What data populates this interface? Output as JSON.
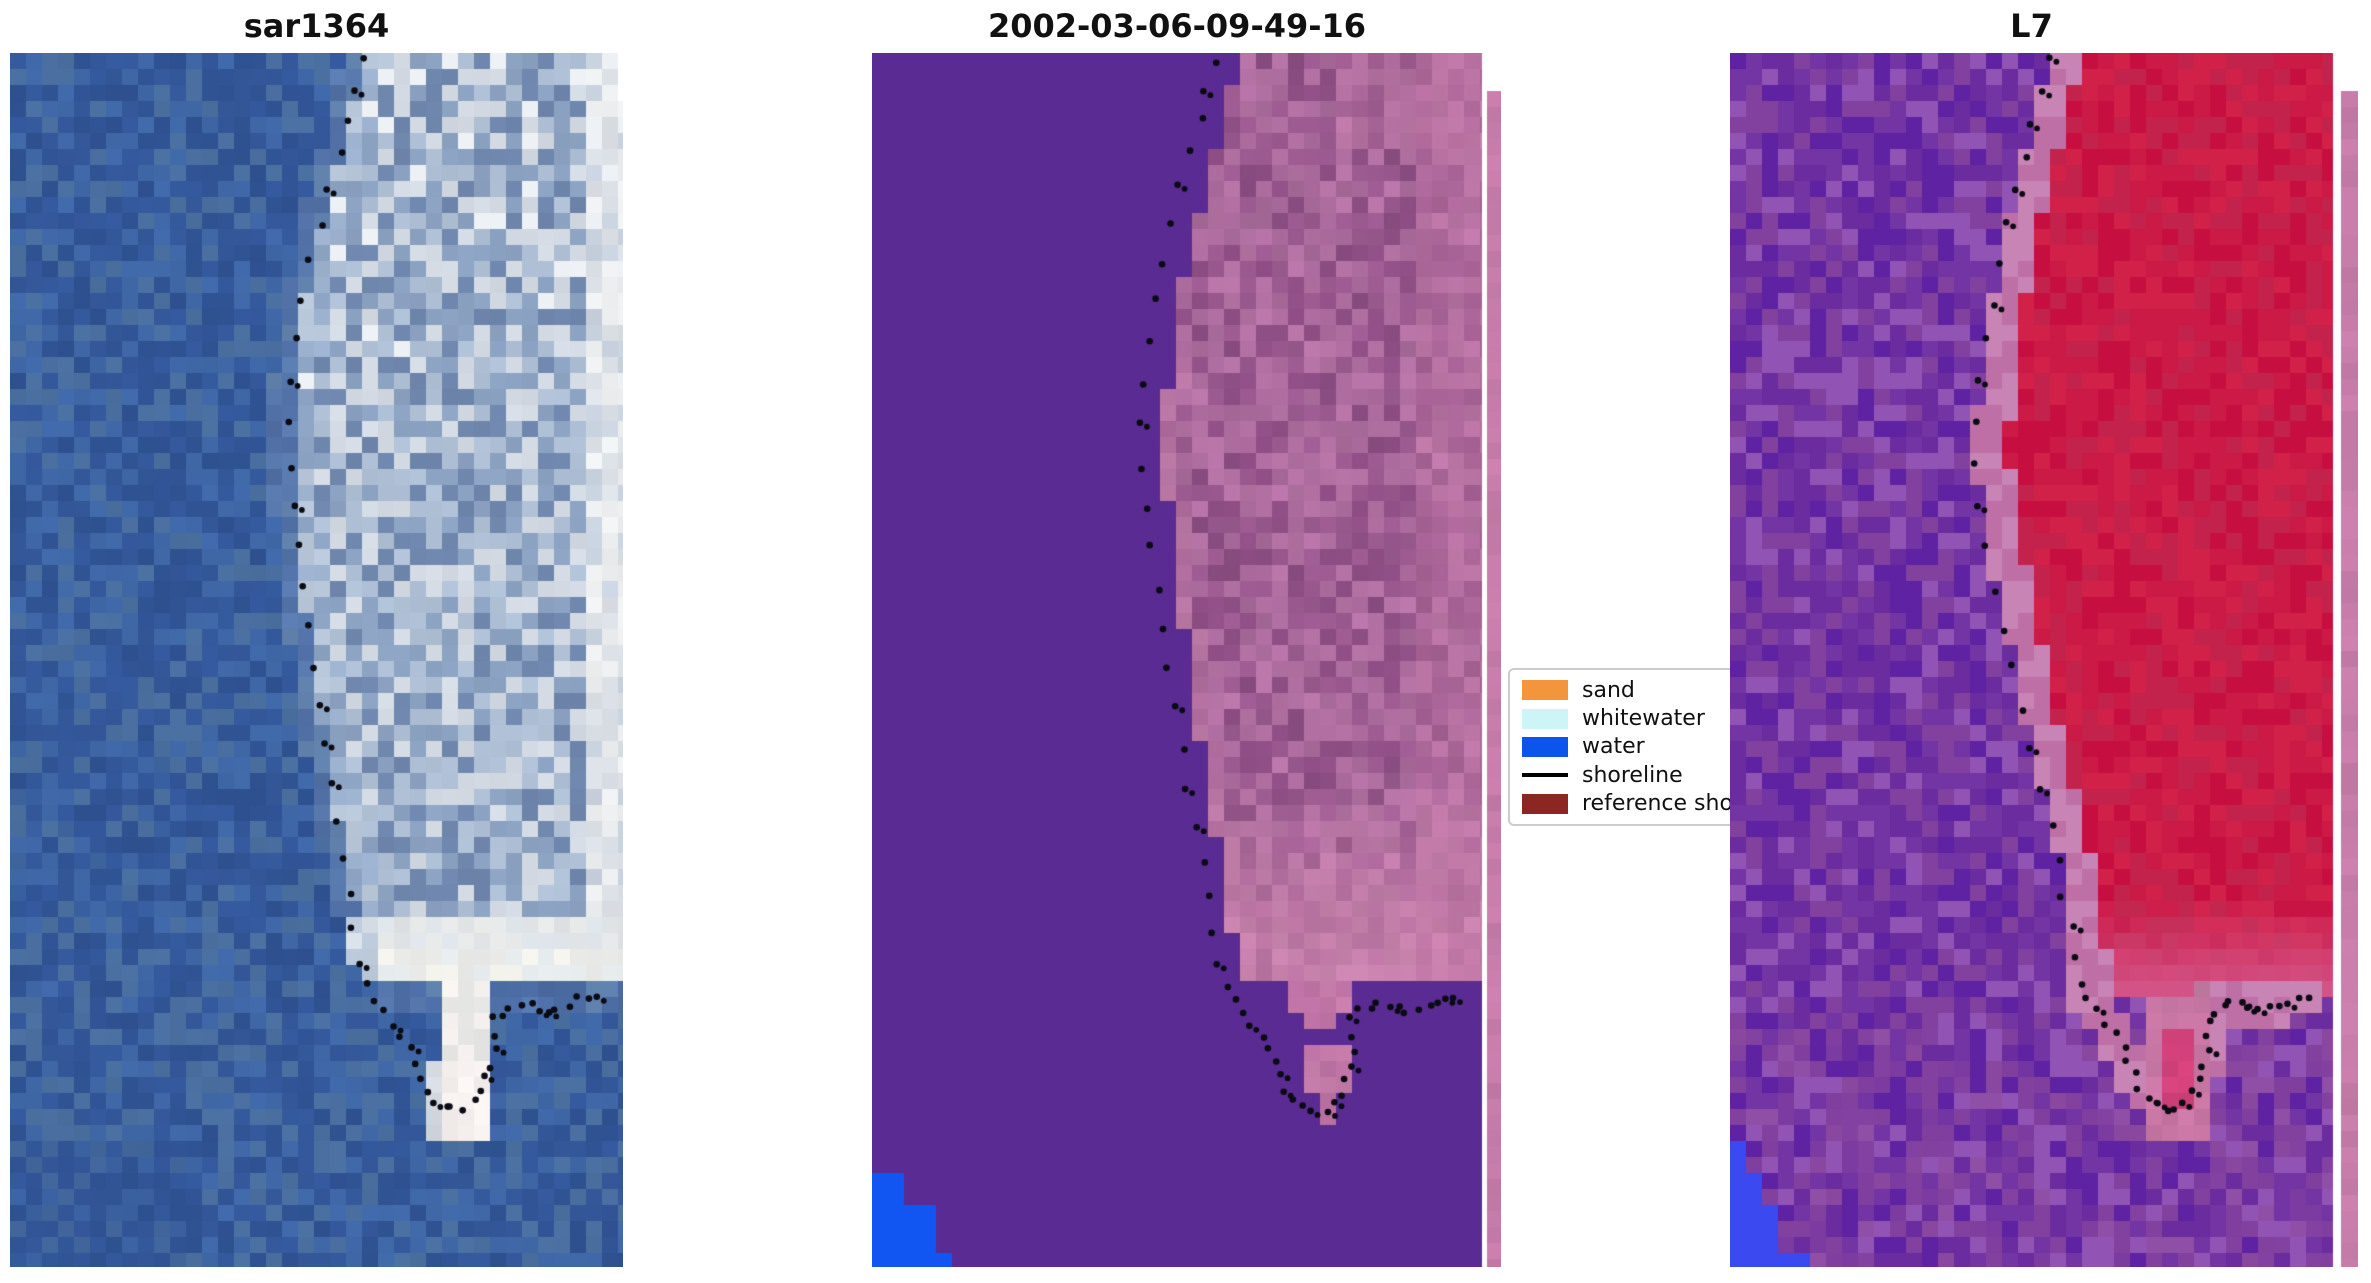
{
  "figure": {
    "background": "#ffffff"
  },
  "panels": [
    {
      "title": "sar1364",
      "kind": "sar",
      "shoreline_shift": 0.0,
      "palette": {
        "water": [
          "#34589B",
          "#4068A8",
          "#4A6FA0",
          "#2F5292"
        ],
        "land": [
          "#6F86AD",
          "#8CA2C2",
          "#AFC0D6",
          "#D3DAE4"
        ],
        "land_fringe": [
          "#9DB2CF",
          "#B9C7DA",
          "#8CA2C2"
        ],
        "land_right": [
          "#C9D2DF",
          "#DCE1E7",
          "#EDEFF0"
        ],
        "band": [
          "#EDEEEC",
          "#F6F4EF",
          "#E3E8EA"
        ],
        "stem": [
          "#E8E9E7",
          "#F4EFED"
        ],
        "blob": "#F6F0EF"
      }
    },
    {
      "title": "2002-03-06-09-49-16",
      "kind": "classified",
      "shoreline_shift": -0.012,
      "palette": {
        "water": "#5A2B92",
        "land": [
          "#8D4E84",
          "#9B5A90",
          "#A96A9B",
          "#B472A4"
        ],
        "land_bottom": [
          "#BC76A4",
          "#C782AC"
        ],
        "stem": "#BD72A4",
        "blob": "#C47BA9",
        "blue": "#1155F2",
        "sliver": "#C77CA9"
      }
    },
    {
      "title": "L7",
      "kind": "landsat",
      "shoreline_shift": -0.045,
      "palette": {
        "purple": [
          "#5E22A2",
          "#6A2C9E",
          "#7334A4",
          "#82409F",
          "#9254B4"
        ],
        "purple_pink": "#8E4B9F",
        "red": [
          "#C60F40",
          "#CC1A47",
          "#C2224B",
          "#D12149"
        ],
        "fringe": [
          "#BE6FA6",
          "#C884B4"
        ],
        "fade": "#D4568A",
        "band": "#C27BA4",
        "stem_core": "#D2417A",
        "stem_halo": "#C876A4",
        "blue": "#3A49F0",
        "sliver": "#C77CA9"
      }
    }
  ],
  "legend": {
    "items": [
      {
        "label": "sand",
        "swatch": "patch",
        "color": "#F2953D"
      },
      {
        "label": "whitewater",
        "swatch": "patch",
        "color": "#CDF5F8"
      },
      {
        "label": "water",
        "swatch": "patch",
        "color": "#0B55EC"
      },
      {
        "label": "shoreline",
        "swatch": "line",
        "color": "#000000"
      },
      {
        "label": "reference shoreline",
        "swatch": "patch",
        "color": "#8C2623"
      }
    ]
  },
  "chart_data": {
    "type": "image-panels",
    "panel_titles": [
      "sar1364",
      "2002-03-06-09-49-16",
      "L7"
    ],
    "legend_entries": [
      "sand",
      "whitewater",
      "water",
      "shoreline",
      "reference shoreline"
    ],
    "dot_color": "#0B0B14",
    "shoreline_path_norm": [
      [
        0.57,
        0.006
      ],
      [
        0.561,
        0.03
      ],
      [
        0.549,
        0.057
      ],
      [
        0.535,
        0.083
      ],
      [
        0.52,
        0.11
      ],
      [
        0.505,
        0.14
      ],
      [
        0.491,
        0.172
      ],
      [
        0.478,
        0.205
      ],
      [
        0.468,
        0.238
      ],
      [
        0.459,
        0.272
      ],
      [
        0.454,
        0.306
      ],
      [
        0.453,
        0.34
      ],
      [
        0.458,
        0.374
      ],
      [
        0.465,
        0.408
      ],
      [
        0.474,
        0.441
      ],
      [
        0.483,
        0.474
      ],
      [
        0.492,
        0.507
      ],
      [
        0.501,
        0.54
      ],
      [
        0.511,
        0.572
      ],
      [
        0.522,
        0.604
      ],
      [
        0.533,
        0.635
      ],
      [
        0.544,
        0.665
      ],
      [
        0.554,
        0.694
      ],
      [
        0.563,
        0.722
      ],
      [
        0.571,
        0.748
      ],
      [
        0.58,
        0.768
      ],
      [
        0.593,
        0.78
      ],
      [
        0.608,
        0.79
      ],
      [
        0.623,
        0.8
      ],
      [
        0.638,
        0.81
      ],
      [
        0.652,
        0.82
      ],
      [
        0.663,
        0.831
      ],
      [
        0.671,
        0.843
      ],
      [
        0.68,
        0.854
      ],
      [
        0.693,
        0.862
      ],
      [
        0.708,
        0.868
      ],
      [
        0.724,
        0.871
      ],
      [
        0.741,
        0.87
      ],
      [
        0.757,
        0.865
      ],
      [
        0.77,
        0.856
      ],
      [
        0.779,
        0.845
      ],
      [
        0.786,
        0.833
      ],
      [
        0.79,
        0.82
      ],
      [
        0.792,
        0.808
      ],
      [
        0.79,
        0.797
      ],
      [
        0.801,
        0.79
      ],
      [
        0.815,
        0.786
      ],
      [
        0.83,
        0.784
      ],
      [
        0.846,
        0.785
      ],
      [
        0.862,
        0.787
      ],
      [
        0.878,
        0.788
      ],
      [
        0.894,
        0.786
      ],
      [
        0.91,
        0.783
      ],
      [
        0.926,
        0.78
      ],
      [
        0.942,
        0.778
      ],
      [
        0.957,
        0.777
      ]
    ]
  }
}
